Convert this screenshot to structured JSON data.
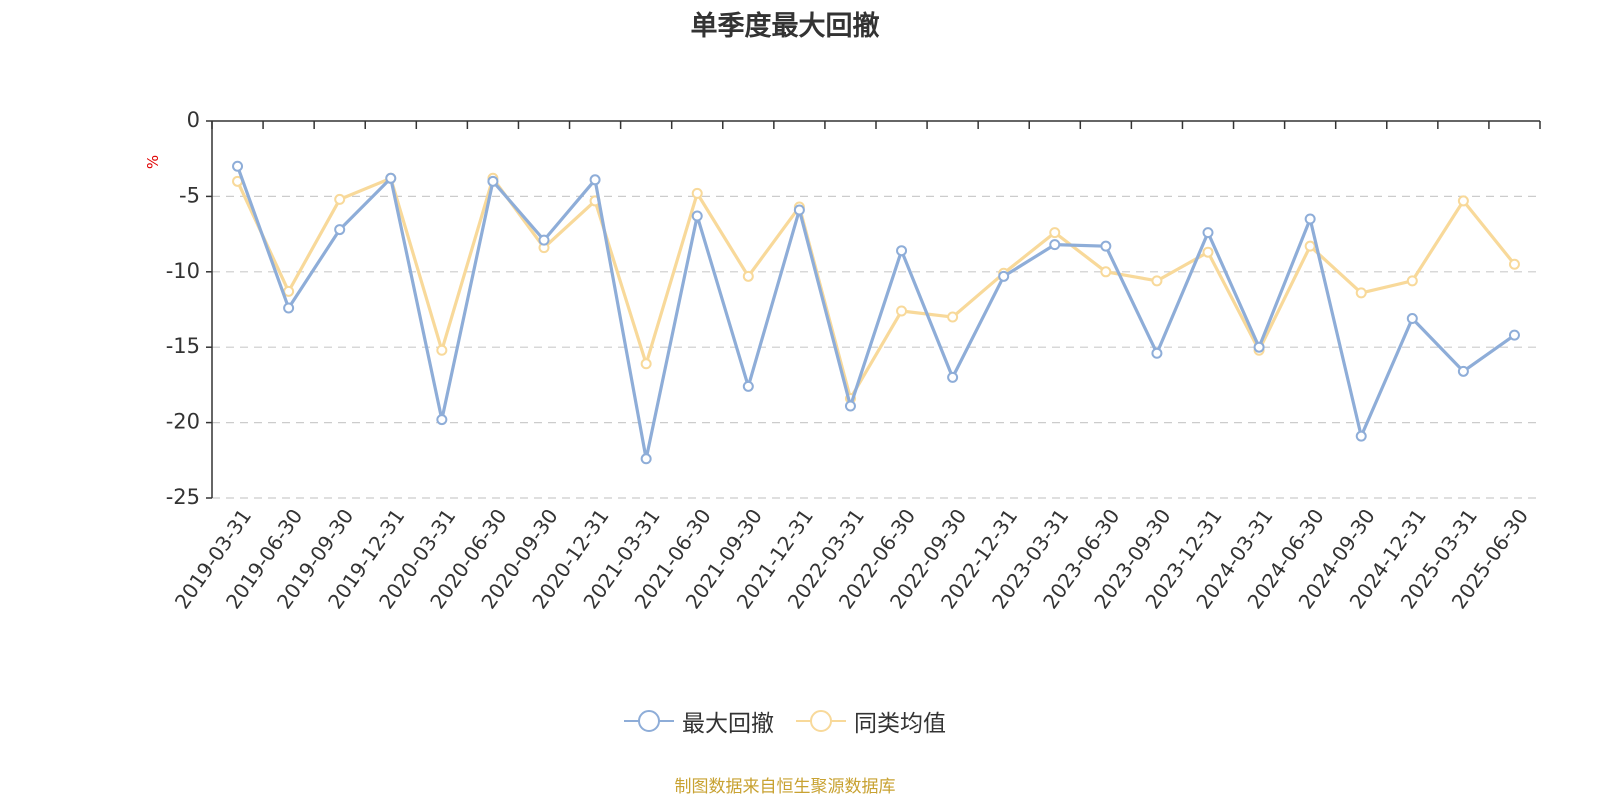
{
  "chart_data": {
    "type": "line",
    "title": "单季度最大回撤",
    "ylabel": "%",
    "xlabel": "",
    "ylim": [
      -25,
      0
    ],
    "yticks": [
      0,
      -5,
      -10,
      -15,
      -20,
      -25
    ],
    "grid": true,
    "legend_position": "bottom",
    "categories": [
      "2019-03-31",
      "2019-06-30",
      "2019-09-30",
      "2019-12-31",
      "2020-03-31",
      "2020-06-30",
      "2020-09-30",
      "2020-12-31",
      "2021-03-31",
      "2021-06-30",
      "2021-09-30",
      "2021-12-31",
      "2022-03-31",
      "2022-06-30",
      "2022-09-30",
      "2022-12-31",
      "2023-03-31",
      "2023-06-30",
      "2023-09-30",
      "2023-12-31",
      "2024-03-31",
      "2024-06-30",
      "2024-09-30",
      "2024-12-31",
      "2025-03-31",
      "2025-06-30"
    ],
    "series": [
      {
        "name": "最大回撤",
        "color": "#8eadd8",
        "values": [
          -3.0,
          -12.4,
          -7.2,
          -3.8,
          -19.8,
          -4.0,
          -7.9,
          -3.9,
          -22.4,
          -6.3,
          -17.6,
          -5.9,
          -18.9,
          -8.6,
          -17.0,
          -10.3,
          -8.2,
          -8.3,
          -15.4,
          -7.4,
          -15.0,
          -6.5,
          -20.9,
          -13.1,
          -16.6,
          -14.2
        ]
      },
      {
        "name": "同类均值",
        "color": "#f8d99a",
        "values": [
          -4.0,
          -11.3,
          -5.2,
          -3.8,
          -15.2,
          -3.8,
          -8.4,
          -5.3,
          -16.1,
          -4.8,
          -10.3,
          -5.7,
          -18.4,
          -12.6,
          -13.0,
          -10.1,
          -7.4,
          -10.0,
          -10.6,
          -8.7,
          -15.2,
          -8.3,
          -11.4,
          -10.6,
          -5.3,
          -9.5
        ]
      }
    ],
    "source": "制图数据来自恒生聚源数据库"
  }
}
